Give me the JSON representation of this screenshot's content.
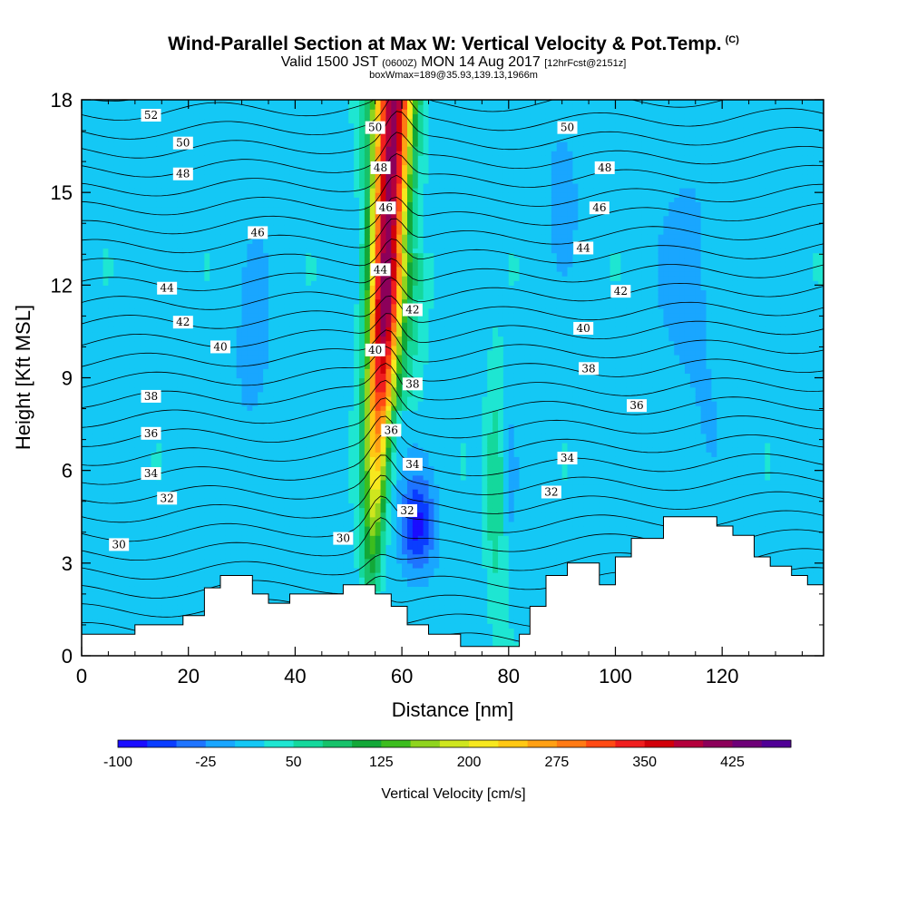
{
  "title": {
    "main": "Wind-Parallel Section at Max W: Vertical Velocity & Pot.Temp.",
    "mark": "(C)",
    "valid_prefix": "Valid 1500 JST",
    "valid_utc": "(0600Z)",
    "valid_date": "MON 14 Aug 2017",
    "forecast": "[12hrFcst@2151z]",
    "box": "boxWmax=189@35.93,139.13,1966m"
  },
  "chart_data": {
    "type": "heatmap",
    "xlabel": "Distance [nm]",
    "ylabel": "Height [Kft MSL]",
    "xlim": [
      0,
      139
    ],
    "ylim": [
      0,
      18
    ],
    "x_ticks": [
      0,
      20,
      40,
      60,
      80,
      100,
      120
    ],
    "y_ticks": [
      0,
      3,
      6,
      9,
      12,
      15,
      18
    ],
    "colorbar": {
      "title": "Vertical Velocity [cm/s]",
      "labels": [
        "-100",
        "-25",
        "50",
        "125",
        "200",
        "275",
        "350",
        "425"
      ],
      "colors": [
        "#1a0dff",
        "#0a3dff",
        "#1e74ff",
        "#19a6ff",
        "#14c8f5",
        "#1ee6d2",
        "#14d89c",
        "#16c26a",
        "#12a838",
        "#3cbd1e",
        "#8fd41e",
        "#cfe61e",
        "#f7e81e",
        "#ffc814",
        "#ffa014",
        "#ff7a14",
        "#ff4a14",
        "#f01e1e",
        "#d2000a",
        "#b4003c",
        "#8c005a",
        "#6e0078",
        "#500096"
      ],
      "range": [
        -100,
        450
      ]
    },
    "theta_contours": [
      {
        "theta": 30,
        "label_at": [
          7,
          3.6
        ]
      },
      {
        "theta": 30,
        "label_at": [
          49,
          3.8
        ]
      },
      {
        "theta": 32,
        "label_at": [
          16,
          5.1
        ]
      },
      {
        "theta": 32,
        "label_at": [
          61,
          4.7
        ]
      },
      {
        "theta": 32,
        "label_at": [
          88,
          5.3
        ]
      },
      {
        "theta": 34,
        "label_at": [
          13,
          5.9
        ]
      },
      {
        "theta": 34,
        "label_at": [
          62,
          6.2
        ]
      },
      {
        "theta": 34,
        "label_at": [
          91,
          6.4
        ]
      },
      {
        "theta": 36,
        "label_at": [
          13,
          7.2
        ]
      },
      {
        "theta": 36,
        "label_at": [
          58,
          7.3
        ]
      },
      {
        "theta": 36,
        "label_at": [
          104,
          8.1
        ]
      },
      {
        "theta": 38,
        "label_at": [
          13,
          8.4
        ]
      },
      {
        "theta": 38,
        "label_at": [
          62,
          8.8
        ]
      },
      {
        "theta": 38,
        "label_at": [
          95,
          9.3
        ]
      },
      {
        "theta": 40,
        "label_at": [
          26,
          10.0
        ]
      },
      {
        "theta": 40,
        "label_at": [
          55,
          9.9
        ]
      },
      {
        "theta": 40,
        "label_at": [
          94,
          10.6
        ]
      },
      {
        "theta": 42,
        "label_at": [
          19,
          10.8
        ]
      },
      {
        "theta": 42,
        "label_at": [
          62,
          11.2
        ]
      },
      {
        "theta": 42,
        "label_at": [
          101,
          11.8
        ]
      },
      {
        "theta": 44,
        "label_at": [
          16,
          11.9
        ]
      },
      {
        "theta": 44,
        "label_at": [
          56,
          12.5
        ]
      },
      {
        "theta": 44,
        "label_at": [
          94,
          13.2
        ]
      },
      {
        "theta": 46,
        "label_at": [
          33,
          13.7
        ]
      },
      {
        "theta": 46,
        "label_at": [
          57,
          14.5
        ]
      },
      {
        "theta": 46,
        "label_at": [
          97,
          14.5
        ]
      },
      {
        "theta": 48,
        "label_at": [
          19,
          15.6
        ]
      },
      {
        "theta": 48,
        "label_at": [
          56,
          15.8
        ]
      },
      {
        "theta": 48,
        "label_at": [
          98,
          15.8
        ]
      },
      {
        "theta": 50,
        "label_at": [
          19,
          16.6
        ]
      },
      {
        "theta": 50,
        "label_at": [
          55,
          17.1
        ]
      },
      {
        "theta": 50,
        "label_at": [
          91,
          17.1
        ]
      },
      {
        "theta": 52,
        "label_at": [
          13,
          17.5
        ]
      }
    ],
    "terrain_kft": [
      [
        0,
        0.7
      ],
      [
        10,
        0.7
      ],
      [
        10,
        1.0
      ],
      [
        19,
        1.0
      ],
      [
        19,
        1.3
      ],
      [
        23,
        1.3
      ],
      [
        23,
        2.2
      ],
      [
        26,
        2.2
      ],
      [
        26,
        2.6
      ],
      [
        32,
        2.6
      ],
      [
        32,
        2.0
      ],
      [
        35,
        2.0
      ],
      [
        35,
        1.7
      ],
      [
        39,
        1.7
      ],
      [
        39,
        2.0
      ],
      [
        49,
        2.0
      ],
      [
        49,
        2.3
      ],
      [
        55,
        2.3
      ],
      [
        55,
        2.0
      ],
      [
        58,
        2.0
      ],
      [
        58,
        1.6
      ],
      [
        61,
        1.6
      ],
      [
        61,
        1.0
      ],
      [
        65,
        1.0
      ],
      [
        65,
        0.7
      ],
      [
        71,
        0.7
      ],
      [
        71,
        0.3
      ],
      [
        82,
        0.3
      ],
      [
        82,
        0.7
      ],
      [
        84,
        0.7
      ],
      [
        84,
        1.6
      ],
      [
        87,
        1.6
      ],
      [
        87,
        2.6
      ],
      [
        91,
        2.6
      ],
      [
        91,
        3.0
      ],
      [
        97,
        3.0
      ],
      [
        97,
        2.3
      ],
      [
        100,
        2.3
      ],
      [
        100,
        3.2
      ],
      [
        103,
        3.2
      ],
      [
        103,
        3.8
      ],
      [
        109,
        3.8
      ],
      [
        109,
        4.5
      ],
      [
        119,
        4.5
      ],
      [
        119,
        4.2
      ],
      [
        122,
        4.2
      ],
      [
        122,
        3.9
      ],
      [
        126,
        3.9
      ],
      [
        126,
        3.2
      ],
      [
        129,
        3.2
      ],
      [
        129,
        2.9
      ],
      [
        133,
        2.9
      ],
      [
        133,
        2.6
      ],
      [
        136,
        2.6
      ],
      [
        136,
        2.3
      ],
      [
        139,
        2.3
      ]
    ]
  }
}
